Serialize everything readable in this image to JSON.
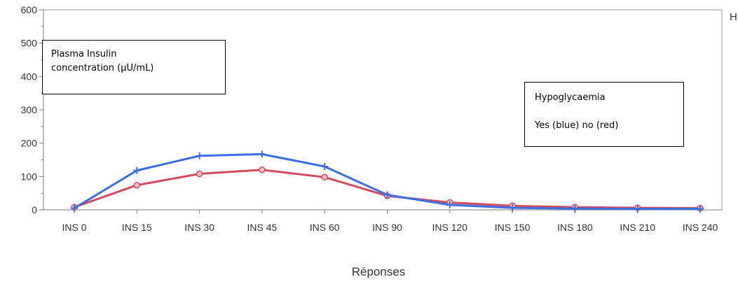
{
  "chart_data": {
    "type": "line",
    "categories": [
      "INS 0",
      "INS 15",
      "INS 30",
      "INS 45",
      "INS 60",
      "INS 90",
      "INS 120",
      "INS 150",
      "INS 180",
      "INS 210",
      "INS 240"
    ],
    "series": [
      {
        "color": "#3b6fe0",
        "marker": "plus",
        "values": [
          5,
          118,
          162,
          167,
          130,
          45,
          15,
          6,
          4,
          3,
          3
        ]
      },
      {
        "color": "#d24a5e",
        "marker": "circle",
        "values": [
          8,
          74,
          108,
          120,
          98,
          42,
          22,
          12,
          8,
          6,
          5
        ]
      }
    ],
    "xlabel": "Réponses",
    "ylabel": "",
    "ylim": [
      0,
      600
    ],
    "yticks": [
      0,
      100,
      200,
      300,
      400,
      500,
      600
    ],
    "grid": false,
    "annotations": [
      {
        "id": "insulin",
        "lines": [
          "Plasma Insulin",
          "concentration (µU/mL)"
        ]
      },
      {
        "id": "hypo",
        "lines": [
          "Hypoglycaemia",
          "Yes (blue) no (red)"
        ]
      }
    ],
    "right_edge_text": "H"
  }
}
